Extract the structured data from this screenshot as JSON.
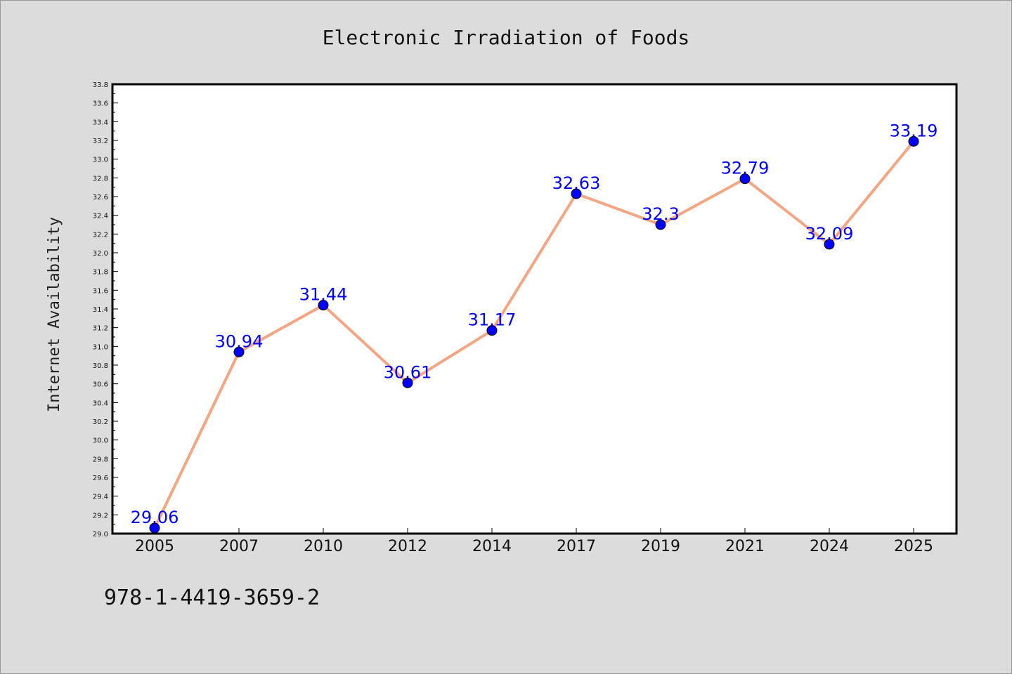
{
  "chart_data": {
    "type": "line",
    "title": "Electronic Irradiation of Foods",
    "xlabel": "",
    "ylabel": "Internet Availability",
    "categories": [
      "2005",
      "2007",
      "2010",
      "2012",
      "2014",
      "2017",
      "2019",
      "2021",
      "2024",
      "2025"
    ],
    "series": [
      {
        "values": [
          29.06,
          30.94,
          31.44,
          30.61,
          31.17,
          32.63,
          32.3,
          32.79,
          32.09,
          33.19
        ],
        "labels": [
          "29.06",
          "30.94",
          "31.44",
          "30.61",
          "31.17",
          "32.63",
          "32.3",
          "32.79",
          "32.09",
          "33.19"
        ]
      }
    ],
    "ylim": [
      29.0,
      33.8
    ],
    "ytick_step": 0.2,
    "ytick_labels": [
      "29.0",
      "29.2",
      "29.4",
      "29.6",
      "29.8",
      "30.0",
      "30.2",
      "30.4",
      "30.6",
      "30.8",
      "31.0",
      "31.2",
      "31.4",
      "31.6",
      "31.8",
      "32.0",
      "32.2",
      "32.4",
      "32.6",
      "32.8",
      "33.0",
      "33.2",
      "33.4",
      "33.6",
      "33.8"
    ],
    "grid": false,
    "legend": "none",
    "colors": {
      "line": "#f4a582",
      "marker": "#0000ff",
      "label": "#0000ff",
      "background": "#dcdcdc",
      "plot_background": "#ffffff"
    }
  },
  "footer": {
    "isbn": "978-1-4419-3659-2"
  }
}
